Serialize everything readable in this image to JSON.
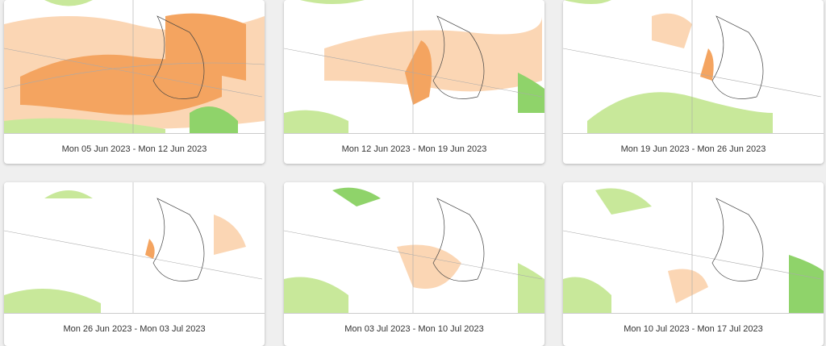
{
  "colors": {
    "strong_warm": "#f4a460",
    "weak_warm": "#fbd6b4",
    "wet": "#c8e89a",
    "strong_wet": "#8fd36a"
  },
  "cards": [
    {
      "caption": "Mon 05 Jun 2023 - Mon 12 Jun 2023"
    },
    {
      "caption": "Mon 12 Jun 2023 - Mon 19 Jun 2023"
    },
    {
      "caption": "Mon 19 Jun 2023 - Mon 26 Jun 2023"
    },
    {
      "caption": "Mon 26 Jun 2023 - Mon 03 Jul 2023"
    },
    {
      "caption": "Mon 03 Jul 2023 - Mon 10 Jul 2023"
    },
    {
      "caption": "Mon 10 Jul 2023 - Mon 17 Jul 2023"
    }
  ]
}
